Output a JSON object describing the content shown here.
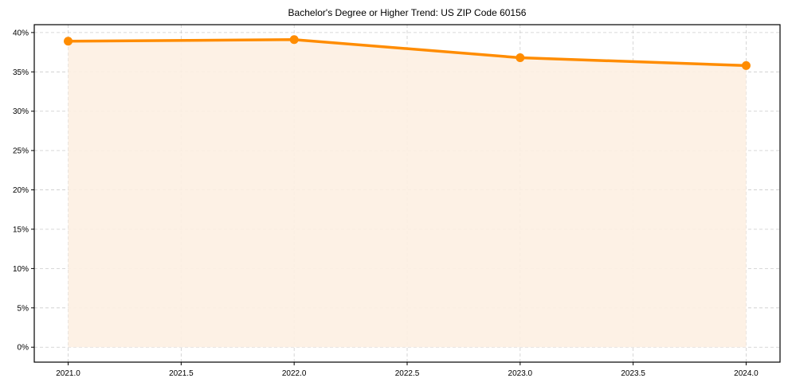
{
  "chart_data": {
    "type": "line",
    "title": "Bachelor's Degree or Higher Trend: US ZIP Code 60156",
    "xlabel": "",
    "ylabel": "",
    "x": [
      2021,
      2022,
      2023,
      2024
    ],
    "series": [
      {
        "name": "Bachelor's Degree or Higher",
        "values": [
          38.9,
          39.1,
          36.8,
          35.8
        ],
        "color": "#ff8c00",
        "fill": true,
        "fill_color": "#fdf0e2",
        "marker": "circle"
      }
    ],
    "xticks": [
      "2021.0",
      "2021.5",
      "2022.0",
      "2022.5",
      "2023.0",
      "2023.5",
      "2024.0"
    ],
    "xtick_values": [
      2021.0,
      2021.5,
      2022.0,
      2022.5,
      2023.0,
      2023.5,
      2024.0
    ],
    "yticks": [
      "0%",
      "5%",
      "10%",
      "15%",
      "20%",
      "25%",
      "30%",
      "35%",
      "40%"
    ],
    "ytick_values": [
      0,
      5,
      10,
      15,
      20,
      25,
      30,
      35,
      40
    ],
    "xlim": [
      2020.85,
      2024.15
    ],
    "ylim": [
      -1.9,
      41.0
    ],
    "grid": true,
    "grid_style": "dashed",
    "legend": null
  }
}
